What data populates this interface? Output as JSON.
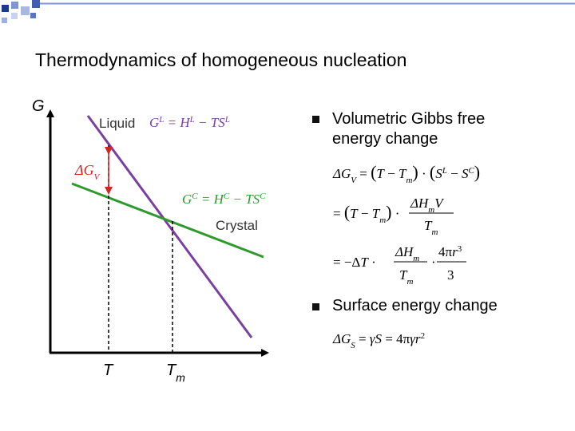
{
  "slide": {
    "title": "Thermodynamics of homogeneous nucleation"
  },
  "diagram": {
    "y_axis_label": "G",
    "liquid_label": "Liquid",
    "liquid_equation": "G^L = H^L − TS^L",
    "crystal_label": "Crystal",
    "crystal_equation": "G^C = H^C − TS^C",
    "delta_gv_label": "ΔG_V",
    "tick_T": "T",
    "tick_Tm": "Tm"
  },
  "bullets": [
    {
      "text_line1": "Volumetric Gibbs free",
      "text_line2": "energy change"
    },
    {
      "text_line1": "Surface energy change"
    }
  ],
  "equations": {
    "dGv_1": "ΔG_V = (T − T_m)·(S^L − S^C)",
    "dGv_2": "= (T − T_m)·ΔH_m V / T_m",
    "dGv_3": "= −ΔT·(ΔH_m / T_m)·(4πr³ / 3)",
    "dGs": "ΔG_S = γS = 4πγr²"
  },
  "colors": {
    "liquid_line": "#7b3fa0",
    "crystal_line": "#2e9a2e",
    "arrow": "#d62424",
    "corner_dark": "#1b3a8a",
    "corner_mid": "#5a76c0",
    "corner_light": "#a9b8e2",
    "bullet": "#111111"
  }
}
